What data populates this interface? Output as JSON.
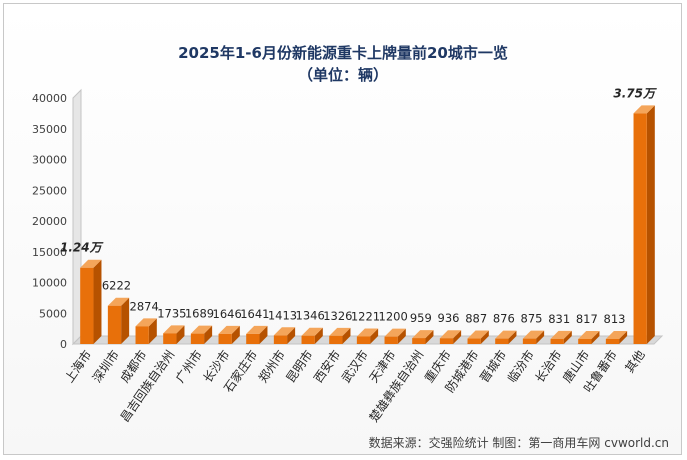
{
  "chart_data": {
    "type": "bar",
    "title": "2025年1-6月份新能源重卡上牌量前20城市一览",
    "subtitle": "（单位：辆）",
    "categories": [
      "上海市",
      "深圳市",
      "成都市",
      "昌吉回族自治州",
      "广州市",
      "长沙市",
      "石家庄市",
      "郑州市",
      "昆明市",
      "西安市",
      "武汉市",
      "天津市",
      "楚雄彝族自治州",
      "重庆市",
      "防城港市",
      "晋城市",
      "临汾市",
      "长治市",
      "唐山市",
      "吐鲁番市",
      "其他"
    ],
    "values": [
      12400,
      6222,
      2874,
      1735,
      1689,
      1646,
      1641,
      1413,
      1346,
      1326,
      1221,
      1200,
      959,
      936,
      887,
      876,
      875,
      831,
      817,
      813,
      37500
    ],
    "data_labels": [
      "1.24万",
      "6222",
      "2874",
      "1735",
      "1689",
      "1646",
      "1641",
      "1413",
      "1346",
      "1326",
      "1221",
      "1200",
      "959",
      "936",
      "887",
      "876",
      "875",
      "831",
      "817",
      "813",
      "3.75万"
    ],
    "ylim": [
      0,
      40000
    ],
    "yticks": [
      0,
      5000,
      10000,
      15000,
      20000,
      25000,
      30000,
      35000,
      40000
    ],
    "grid": false,
    "colors": {
      "bar_front": "#e8700a",
      "bar_side": "#b65200",
      "bar_top": "#f4a55a",
      "wall": "#e6e6e6",
      "wall_edge": "#c4c4c4"
    }
  },
  "source": "数据来源：交强险统计   制图：第一商用车网 cvworld.cn"
}
